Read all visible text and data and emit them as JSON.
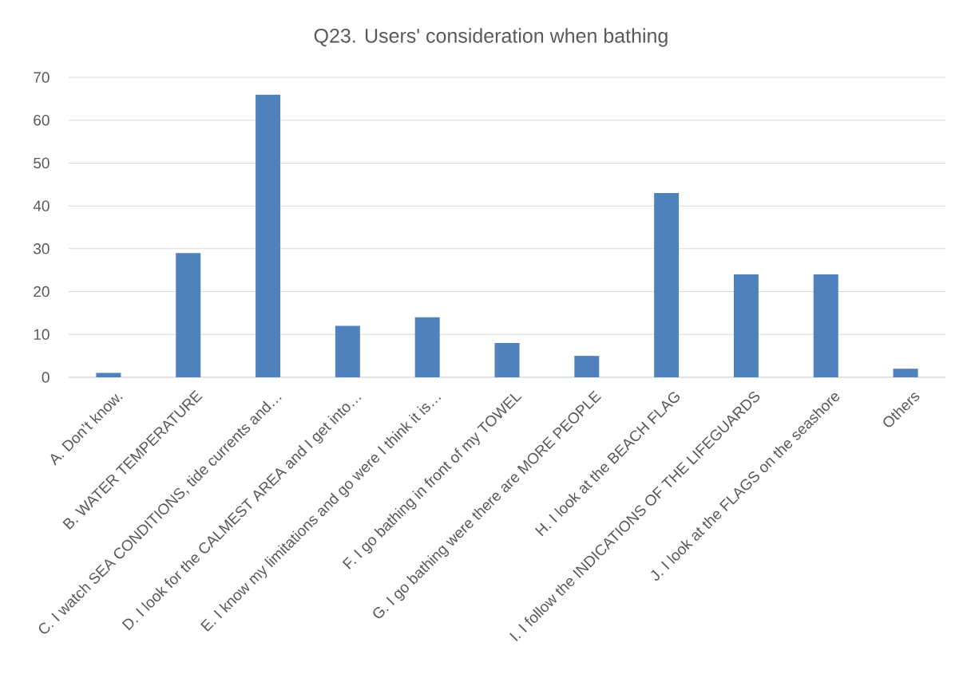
{
  "chart_data": {
    "type": "bar",
    "title": "Q23. Users' consideration when bathing",
    "categories": [
      "A. Don’t know.",
      "B. WATER TEMPERATURE",
      "C. I watch SEA CONDITIONS, tide currents and…",
      "D. I look for the CALMEST AREA and I get into…",
      "E. I know my limitations and go were I think it is…",
      "F. I go bathing in front of my TOWEL",
      "G. I go bathing were there are MORE PEOPLE",
      "H. I look at the BEACH FLAG",
      "I. I follow the INDICATIONS OF THE LIFEGUARDS",
      "J. I look at the FLAGS on the seashore",
      "Others"
    ],
    "values": [
      1,
      29,
      66,
      12,
      14,
      8,
      5,
      43,
      24,
      24,
      2
    ],
    "color": "#4f81bd",
    "ylim": [
      0,
      70
    ],
    "yticks": [
      0,
      10,
      20,
      30,
      40,
      50,
      60,
      70
    ],
    "grid": "y"
  }
}
